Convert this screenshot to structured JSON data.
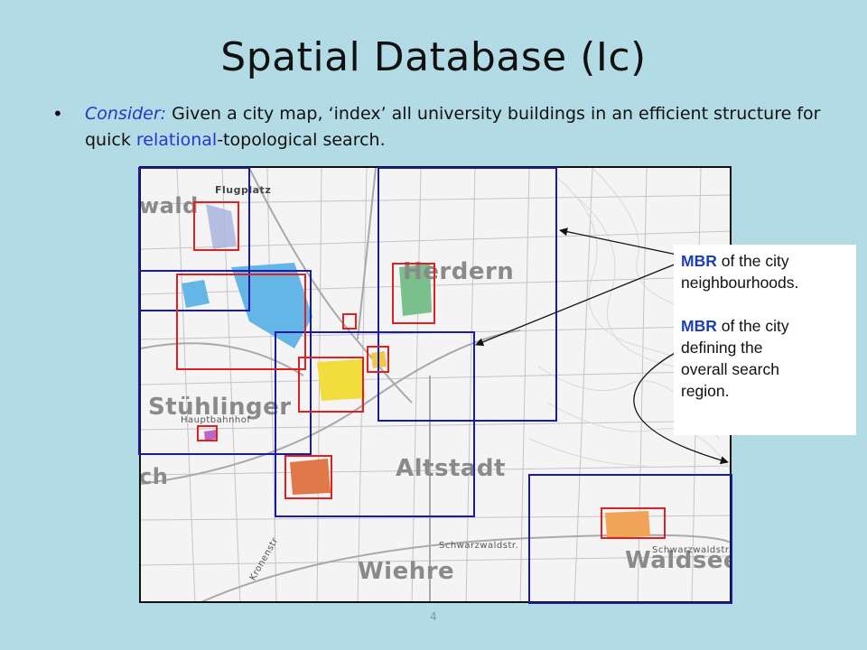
{
  "slide": {
    "title": "Spatial Database (Ic)",
    "page_number": "4"
  },
  "bullet": {
    "lead": "Consider:",
    "part1": " Given a city map, ‘index’ all university buildings in an efficient structure for quick ",
    "relational": "relational",
    "part2": "-topological search."
  },
  "map": {
    "labels": {
      "flugplatz": "Flugplatz",
      "wald": "wald",
      "herdern": "Herdern",
      "stuhlinger": "Stühlinger",
      "hauptbahnhof": "Hauptbahnhof",
      "altstadt": "Altstadt",
      "wiehre": "Wiehre",
      "waldsee": "Waldsee",
      "schwarzwaldstr": "Schwarzwaldstr.",
      "schwarzwaldstr2": "Schwarzwaldstr.",
      "krenestr": "Kronenstr",
      "ch": "ch"
    }
  },
  "callout": {
    "line1_bold": "MBR",
    "line1_rest": " of the city",
    "line2": "neighbourhoods.",
    "line3_bold": "MBR",
    "line3_rest": " of the city",
    "line4": "defining the",
    "line5": "overall search",
    "line6": "region."
  },
  "colors": {
    "background": "#b3dbe6",
    "mbr_neighbourhood": "#1a1aa6",
    "mbr_building": "#e02020",
    "accent_text": "#2a34c8"
  }
}
